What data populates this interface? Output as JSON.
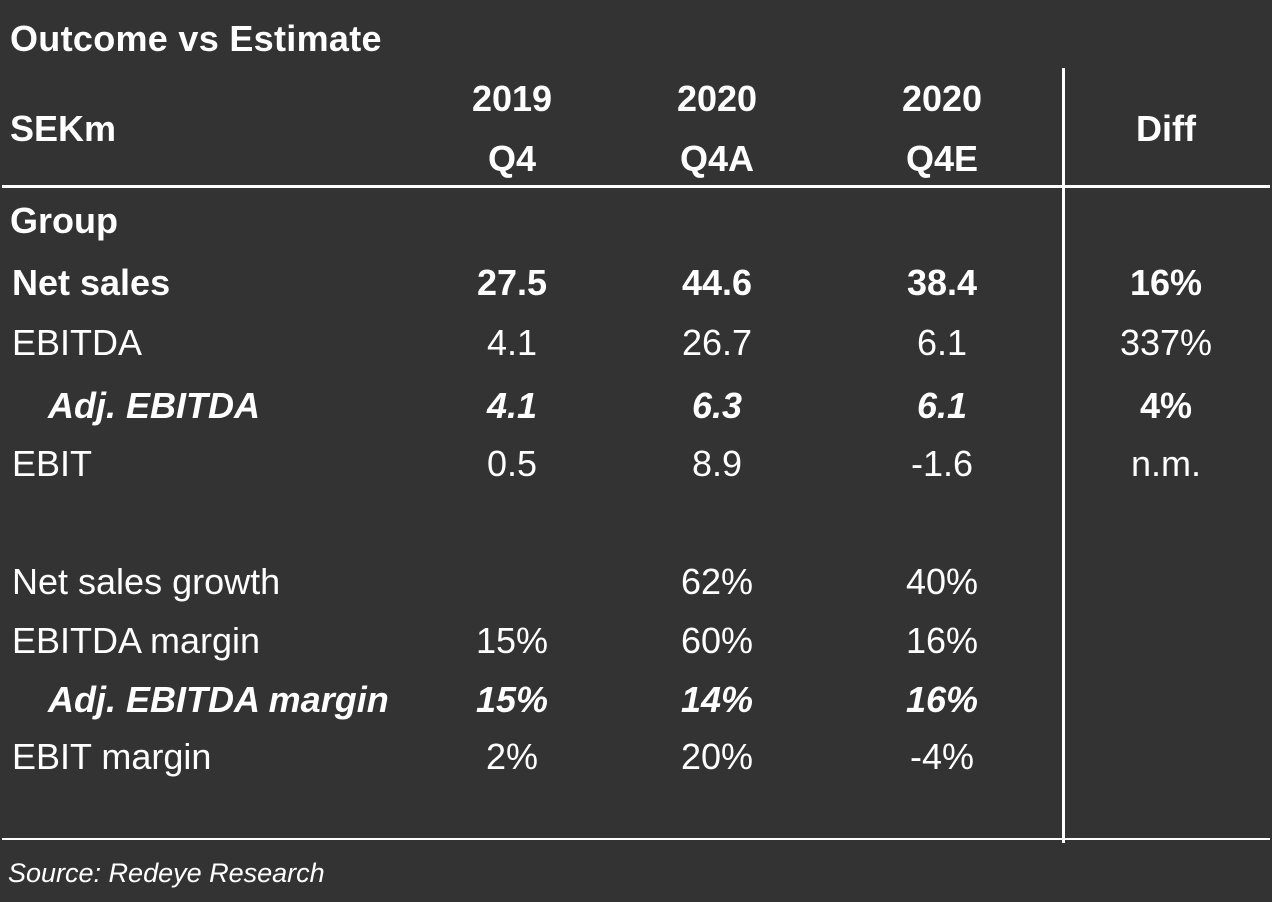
{
  "chart_data": {
    "type": "table",
    "title": "Outcome vs Estimate",
    "unit_label": "SEKm",
    "columns": [
      {
        "year": "2019",
        "period": "Q4"
      },
      {
        "year": "2020",
        "period": "Q4A"
      },
      {
        "year": "2020",
        "period": "Q4E"
      }
    ],
    "diff_label": "Diff",
    "section_label": "Group",
    "rows": [
      {
        "label": "Net sales",
        "values": [
          "27.5",
          "44.6",
          "38.4"
        ],
        "diff": "16%",
        "style": "bold"
      },
      {
        "label": "EBITDA",
        "values": [
          "4.1",
          "26.7",
          "6.1"
        ],
        "diff": "337%",
        "style": "normal"
      },
      {
        "label": "Adj. EBITDA",
        "values": [
          "4.1",
          "6.3",
          "6.1"
        ],
        "diff": "4%",
        "style": "bold-italic"
      },
      {
        "label": "EBIT",
        "values": [
          "0.5",
          "8.9",
          "-1.6"
        ],
        "diff": "n.m.",
        "style": "normal"
      },
      {
        "label": "Net sales growth",
        "values": [
          "",
          "62%",
          "40%"
        ],
        "diff": "",
        "style": "normal"
      },
      {
        "label": "EBITDA margin",
        "values": [
          "15%",
          "60%",
          "16%"
        ],
        "diff": "",
        "style": "normal"
      },
      {
        "label": "Adj. EBITDA margin",
        "values": [
          "15%",
          "14%",
          "16%"
        ],
        "diff": "",
        "style": "bold-italic"
      },
      {
        "label": "EBIT margin",
        "values": [
          "2%",
          "20%",
          "-4%"
        ],
        "diff": "",
        "style": "normal"
      }
    ],
    "source": "Source: Redeye Research"
  },
  "colors": {
    "background": "#333333",
    "text": "#ffffff",
    "rules": "#ffffff"
  }
}
